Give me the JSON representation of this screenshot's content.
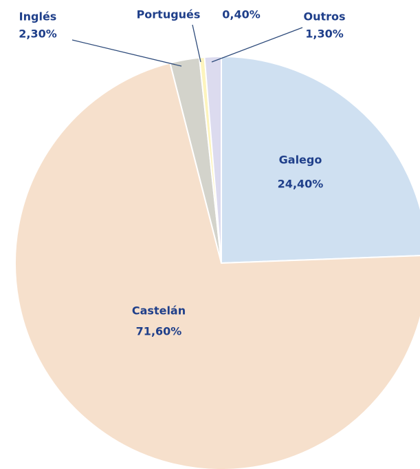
{
  "chart_data": {
    "type": "pie",
    "categories": [
      "Galego",
      "Castelán",
      "Inglés",
      "Portugués",
      "Outros"
    ],
    "values": [
      24.4,
      71.6,
      2.3,
      0.4,
      1.3
    ],
    "value_labels": [
      "24,40%",
      "71,60%",
      "2,30%",
      "0,40%",
      "1,30%"
    ],
    "colors": [
      "#cfe0f1",
      "#f6e0cc",
      "#d3d3cb",
      "#fdf4bd",
      "#dcdbef"
    ]
  }
}
